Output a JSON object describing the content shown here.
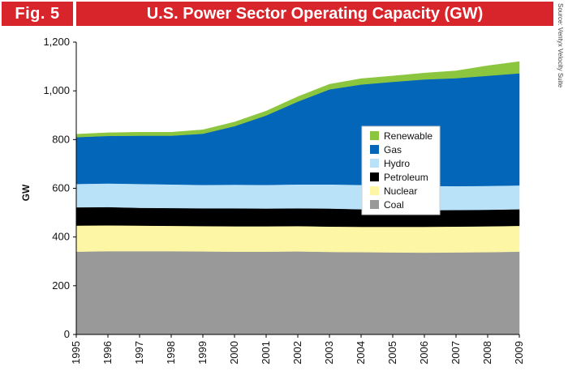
{
  "figure": {
    "label": "Fig. 5",
    "source": "Source: Ventyx Velocity Suite"
  },
  "chart_data": {
    "type": "area",
    "title": "U.S. Power Sector Operating Capacity (GW)",
    "xlabel": "",
    "ylabel": "GW",
    "ylim": [
      0,
      1200
    ],
    "yticks": [
      0,
      200,
      400,
      600,
      800,
      1000,
      1200
    ],
    "ytick_labels": [
      "0",
      "200",
      "400",
      "600",
      "800",
      "1,000",
      "1,200"
    ],
    "x": [
      "1995",
      "1996",
      "1997",
      "1998",
      "1999",
      "2000",
      "2001",
      "2002",
      "2003",
      "2004",
      "2005",
      "2006",
      "2007",
      "2008",
      "2009"
    ],
    "stacked": true,
    "legend_position": "center-right",
    "series": [
      {
        "name": "Coal",
        "color": "#999999",
        "values": [
          340,
          342,
          342,
          342,
          341,
          340,
          340,
          341,
          339,
          338,
          337,
          336,
          337,
          338,
          340
        ]
      },
      {
        "name": "Nuclear",
        "color": "#fdf6a4",
        "values": [
          107,
          106,
          105,
          104,
          104,
          104,
          104,
          104,
          104,
          104,
          105,
          106,
          106,
          106,
          106
        ]
      },
      {
        "name": "Petroleum",
        "color": "#000000",
        "values": [
          75,
          75,
          73,
          73,
          73,
          74,
          73,
          73,
          74,
          72,
          70,
          68,
          68,
          68,
          68
        ]
      },
      {
        "name": "Hydro",
        "color": "#b9e1f8",
        "values": [
          96,
          97,
          98,
          97,
          96,
          97,
          97,
          98,
          99,
          100,
          100,
          100,
          98,
          98,
          98
        ]
      },
      {
        "name": "Gas",
        "color": "#0366b8",
        "values": [
          192,
          195,
          198,
          200,
          210,
          240,
          285,
          340,
          390,
          412,
          425,
          437,
          443,
          452,
          460
        ]
      },
      {
        "name": "Renewable",
        "color": "#8cc63f",
        "values": [
          12,
          13,
          14,
          14,
          16,
          17,
          18,
          20,
          21,
          24,
          24,
          26,
          30,
          41,
          48
        ]
      }
    ]
  }
}
